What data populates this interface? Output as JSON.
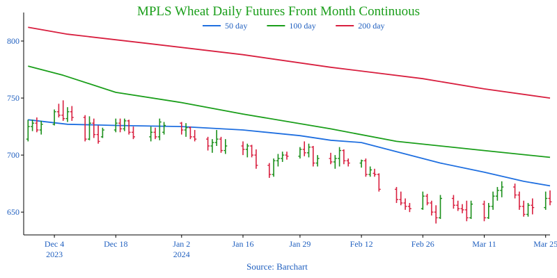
{
  "chart_data": {
    "type": "ohlc",
    "title": "MPLS Wheat Daily Futures Front Month Continuous",
    "source": "Source: Barchart",
    "ylim": [
      630,
      825
    ],
    "y_ticks": [
      650,
      700,
      750,
      800
    ],
    "x_range": [
      "2023-11-27",
      "2024-03-26"
    ],
    "x_ticks": [
      {
        "date": "2023-12-04",
        "label": "Dec 4",
        "year": "2023"
      },
      {
        "date": "2023-12-18",
        "label": "Dec 18",
        "year": ""
      },
      {
        "date": "2024-01-02",
        "label": "Jan 2",
        "year": "2024"
      },
      {
        "date": "2024-01-16",
        "label": "Jan 16",
        "year": ""
      },
      {
        "date": "2024-01-29",
        "label": "Jan 29",
        "year": ""
      },
      {
        "date": "2024-02-12",
        "label": "Feb 12",
        "year": ""
      },
      {
        "date": "2024-02-26",
        "label": "Feb 26",
        "year": ""
      },
      {
        "date": "2024-03-11",
        "label": "Mar 11",
        "year": ""
      },
      {
        "date": "2024-03-25",
        "label": "Mar 25",
        "year": ""
      }
    ],
    "legend_placement": "top-center",
    "colors": {
      "up": "#1a8f1a",
      "down": "#d81f3f",
      "axis": "#000000",
      "text": "#1f5fbf",
      "title": "#1a9e1a"
    },
    "series": [
      {
        "name": "50 day",
        "color": "#1f6fe0",
        "points": [
          [
            "2023-11-28",
            731
          ],
          [
            "2023-12-07",
            727
          ],
          [
            "2023-12-18",
            726
          ],
          [
            "2024-01-02",
            725
          ],
          [
            "2024-01-16",
            722
          ],
          [
            "2024-01-29",
            717
          ],
          [
            "2024-02-05",
            713
          ],
          [
            "2024-02-12",
            711
          ],
          [
            "2024-02-20",
            703
          ],
          [
            "2024-03-01",
            693
          ],
          [
            "2024-03-11",
            685
          ],
          [
            "2024-03-20",
            677
          ],
          [
            "2024-03-26",
            673
          ]
        ]
      },
      {
        "name": "100 day",
        "color": "#1a9e1a",
        "points": [
          [
            "2023-11-28",
            778
          ],
          [
            "2023-12-06",
            770
          ],
          [
            "2023-12-18",
            755
          ],
          [
            "2024-01-02",
            746
          ],
          [
            "2024-01-16",
            736
          ],
          [
            "2024-02-05",
            723
          ],
          [
            "2024-02-20",
            712
          ],
          [
            "2024-03-11",
            704
          ],
          [
            "2024-03-26",
            698
          ]
        ]
      },
      {
        "name": "200 day",
        "color": "#d81f3f",
        "points": [
          [
            "2023-11-28",
            812
          ],
          [
            "2023-12-07",
            806
          ],
          [
            "2023-12-25",
            798
          ],
          [
            "2024-01-16",
            788
          ],
          [
            "2024-02-05",
            777
          ],
          [
            "2024-02-26",
            767
          ],
          [
            "2024-03-11",
            758
          ],
          [
            "2024-03-26",
            750
          ]
        ]
      }
    ],
    "bars": [
      [
        "2023-11-28",
        714,
        731,
        712,
        725
      ],
      [
        "2023-11-29",
        725,
        731,
        721,
        728
      ],
      [
        "2023-11-30",
        728,
        733,
        720,
        722
      ],
      [
        "2023-12-01",
        722,
        730,
        718,
        727
      ],
      [
        "2023-12-04",
        727,
        740,
        726,
        738
      ],
      [
        "2023-12-05",
        738,
        745,
        733,
        735
      ],
      [
        "2023-12-06",
        735,
        748,
        730,
        732
      ],
      [
        "2023-12-07",
        732,
        742,
        729,
        738
      ],
      [
        "2023-12-08",
        738,
        743,
        730,
        733
      ],
      [
        "2023-12-11",
        733,
        735,
        712,
        714
      ],
      [
        "2023-12-12",
        714,
        734,
        713,
        728
      ],
      [
        "2023-12-13",
        728,
        732,
        715,
        718
      ],
      [
        "2023-12-14",
        718,
        726,
        710,
        712
      ],
      [
        "2023-12-15",
        716,
        724,
        715,
        722
      ],
      [
        "2023-12-18",
        722,
        732,
        720,
        728
      ],
      [
        "2023-12-19",
        728,
        732,
        720,
        723
      ],
      [
        "2023-12-20",
        723,
        732,
        721,
        730
      ],
      [
        "2023-12-21",
        730,
        731,
        718,
        720
      ],
      [
        "2023-12-22",
        720,
        725,
        714,
        716
      ],
      [
        "2023-12-26",
        716,
        725,
        712,
        720
      ],
      [
        "2023-12-27",
        720,
        724,
        714,
        716
      ],
      [
        "2023-12-28",
        716,
        732,
        713,
        729
      ],
      [
        "2023-12-29",
        720,
        729,
        718,
        726
      ],
      [
        "2024-01-02",
        728,
        729,
        718,
        722
      ],
      [
        "2024-01-03",
        722,
        728,
        716,
        724
      ],
      [
        "2024-01-04",
        724,
        725,
        714,
        716
      ],
      [
        "2024-01-05",
        716,
        722,
        712,
        714
      ],
      [
        "2024-01-08",
        714,
        716,
        704,
        708
      ],
      [
        "2024-01-09",
        708,
        714,
        702,
        711
      ],
      [
        "2024-01-10",
        711,
        722,
        708,
        714
      ],
      [
        "2024-01-11",
        714,
        716,
        702,
        704
      ],
      [
        "2024-01-12",
        704,
        714,
        701,
        708
      ],
      [
        "2024-01-16",
        708,
        712,
        700,
        705
      ],
      [
        "2024-01-17",
        705,
        710,
        698,
        708
      ],
      [
        "2024-01-18",
        708,
        709,
        698,
        700
      ],
      [
        "2024-01-19",
        700,
        705,
        688,
        691
      ],
      [
        "2024-01-22",
        691,
        693,
        680,
        683
      ],
      [
        "2024-01-23",
        683,
        697,
        681,
        695
      ],
      [
        "2024-01-24",
        695,
        701,
        690,
        697
      ],
      [
        "2024-01-25",
        697,
        703,
        694,
        700
      ],
      [
        "2024-01-26",
        700,
        703,
        696,
        699
      ],
      [
        "2024-01-29",
        699,
        707,
        697,
        705
      ],
      [
        "2024-01-30",
        705,
        712,
        699,
        702
      ],
      [
        "2024-01-31",
        702,
        710,
        698,
        707
      ],
      [
        "2024-02-01",
        707,
        708,
        690,
        693
      ],
      [
        "2024-02-02",
        693,
        700,
        690,
        697
      ],
      [
        "2024-02-05",
        697,
        702,
        692,
        694
      ],
      [
        "2024-02-06",
        694,
        700,
        688,
        697
      ],
      [
        "2024-02-07",
        697,
        707,
        690,
        704
      ],
      [
        "2024-02-08",
        704,
        705,
        692,
        695
      ],
      [
        "2024-02-09",
        695,
        697,
        690,
        693
      ],
      [
        "2024-02-12",
        693,
        696,
        689,
        695
      ],
      [
        "2024-02-13",
        695,
        697,
        681,
        683
      ],
      [
        "2024-02-14",
        683,
        690,
        681,
        687
      ],
      [
        "2024-02-15",
        684,
        688,
        681,
        683
      ],
      [
        "2024-02-16",
        683,
        684,
        668,
        670
      ],
      [
        "2024-02-20",
        670,
        672,
        658,
        661
      ],
      [
        "2024-02-21",
        661,
        668,
        656,
        658
      ],
      [
        "2024-02-22",
        658,
        662,
        652,
        655
      ],
      [
        "2024-02-23",
        655,
        658,
        650,
        653
      ],
      [
        "2024-02-26",
        653,
        668,
        652,
        664
      ],
      [
        "2024-02-27",
        664,
        666,
        656,
        658
      ],
      [
        "2024-02-28",
        658,
        660,
        647,
        650
      ],
      [
        "2024-02-29",
        650,
        656,
        640,
        645
      ],
      [
        "2024-03-01",
        645,
        665,
        644,
        662
      ],
      [
        "2024-03-04",
        662,
        665,
        653,
        656
      ],
      [
        "2024-03-05",
        656,
        660,
        651,
        653
      ],
      [
        "2024-03-06",
        653,
        657,
        649,
        652
      ],
      [
        "2024-03-07",
        652,
        660,
        642,
        645
      ],
      [
        "2024-03-08",
        645,
        660,
        644,
        657
      ],
      [
        "2024-03-11",
        657,
        660,
        642,
        645
      ],
      [
        "2024-03-12",
        645,
        658,
        644,
        655
      ],
      [
        "2024-03-13",
        655,
        668,
        652,
        664
      ],
      [
        "2024-03-14",
        664,
        672,
        660,
        669
      ],
      [
        "2024-03-15",
        669,
        677,
        663,
        672
      ],
      [
        "2024-03-18",
        672,
        675,
        662,
        665
      ],
      [
        "2024-03-19",
        665,
        668,
        652,
        655
      ],
      [
        "2024-03-20",
        655,
        660,
        646,
        648
      ],
      [
        "2024-03-21",
        648,
        658,
        646,
        656
      ],
      [
        "2024-03-22",
        656,
        662,
        648,
        654
      ],
      [
        "2024-03-25",
        654,
        668,
        652,
        662
      ],
      [
        "2024-03-26",
        662,
        669,
        656,
        659
      ]
    ]
  }
}
